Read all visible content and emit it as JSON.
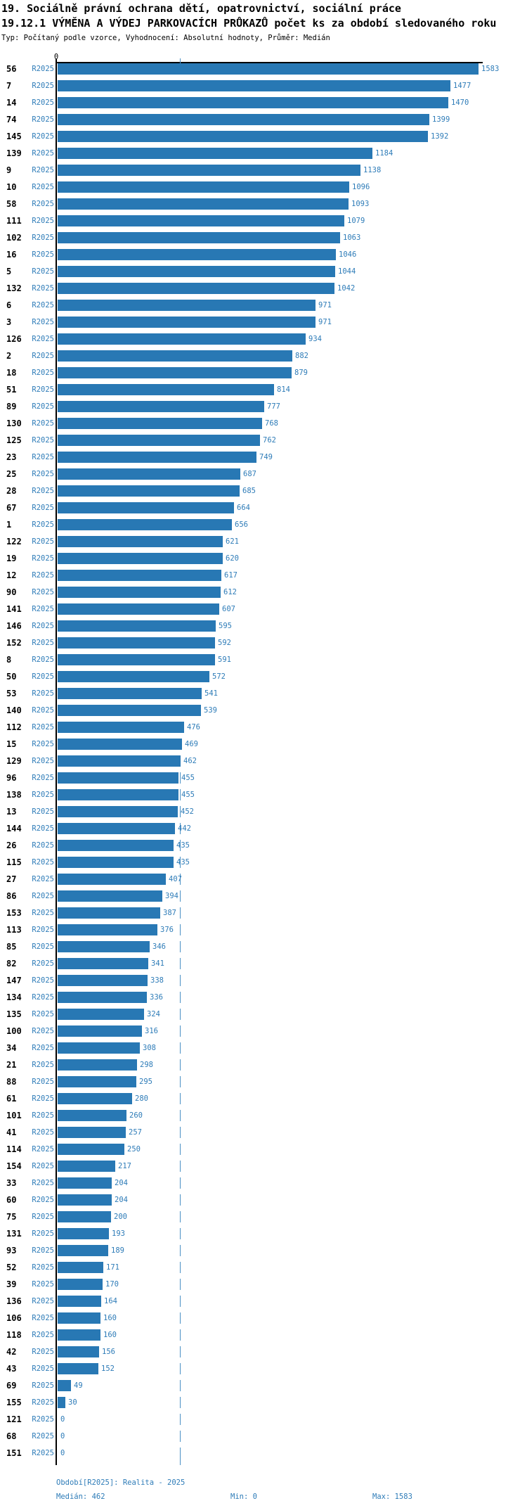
{
  "header": {
    "title_line1": "19. Sociálně právní ochrana dětí, opatrovnictví, sociální práce",
    "title_line2": "19.12.1 VÝMĚNA A VÝDEJ PARKOVACÍCH PRŮKAZŮ počet ks za období sledovaného roku",
    "subtitle": "Typ: Počítaný podle vzorce, Vyhodnocení: Absolutní hodnoty, Průměr: Medián"
  },
  "axis": {
    "zero_label": "0"
  },
  "footer": {
    "period": "Období[R2025]: Realita - 2025",
    "median": "Medián: 462",
    "min": "Min: 0",
    "max": "Max: 1583"
  },
  "colors": {
    "bar": "#2878b4",
    "blue_text": "#2e7cb8",
    "median_line": "#4a90c4",
    "axis": "#000000"
  },
  "chart_data": {
    "type": "bar",
    "orientation": "horizontal",
    "title": "19.12.1 VÝMĚNA A VÝDEJ PARKOVACÍCH PRŮKAZŮ počet ks za období sledovaného roku",
    "xlabel": "",
    "ylabel": "",
    "xlim": [
      0,
      1620
    ],
    "grid": false,
    "legend_position": "none",
    "median": 462,
    "min": 0,
    "max": 1583,
    "series_name": "R2025",
    "categories": [
      "56",
      "7",
      "14",
      "74",
      "145",
      "139",
      "9",
      "10",
      "58",
      "111",
      "102",
      "16",
      "5",
      "132",
      "6",
      "3",
      "126",
      "2",
      "18",
      "51",
      "89",
      "130",
      "125",
      "23",
      "25",
      "28",
      "67",
      "1",
      "122",
      "19",
      "12",
      "90",
      "141",
      "146",
      "152",
      "8",
      "50",
      "53",
      "140",
      "112",
      "15",
      "129",
      "96",
      "138",
      "13",
      "144",
      "26",
      "115",
      "27",
      "86",
      "153",
      "113",
      "85",
      "82",
      "147",
      "134",
      "135",
      "100",
      "34",
      "21",
      "88",
      "61",
      "101",
      "41",
      "114",
      "154",
      "33",
      "60",
      "75",
      "131",
      "93",
      "52",
      "39",
      "136",
      "106",
      "118",
      "42",
      "43",
      "69",
      "155",
      "121",
      "68",
      "151"
    ],
    "values": [
      1583,
      1477,
      1470,
      1399,
      1392,
      1184,
      1138,
      1096,
      1093,
      1079,
      1063,
      1046,
      1044,
      1042,
      971,
      971,
      934,
      882,
      879,
      814,
      777,
      768,
      762,
      749,
      687,
      685,
      664,
      656,
      621,
      620,
      617,
      612,
      607,
      595,
      592,
      591,
      572,
      541,
      539,
      476,
      469,
      462,
      455,
      455,
      452,
      442,
      435,
      435,
      407,
      394,
      387,
      376,
      346,
      341,
      338,
      336,
      324,
      316,
      308,
      298,
      295,
      280,
      260,
      257,
      250,
      217,
      204,
      204,
      200,
      193,
      189,
      171,
      170,
      164,
      160,
      160,
      156,
      152,
      49,
      30,
      0,
      0,
      0
    ]
  }
}
